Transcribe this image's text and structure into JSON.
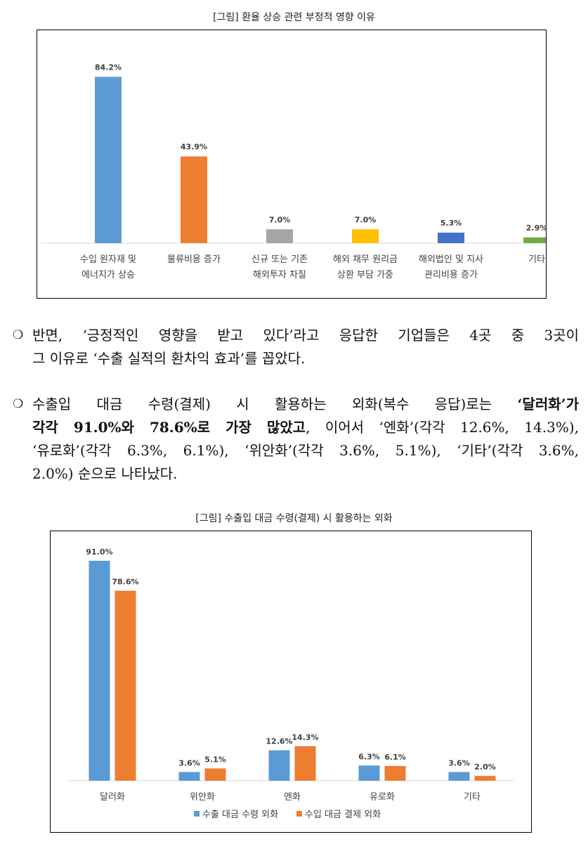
{
  "figure1": {
    "caption": "[그림] 환율 상승 관련 부정적 영향 이유",
    "chart_data": {
      "type": "bar",
      "categories": [
        [
          "수입 원자재 및",
          "에너지가 상승"
        ],
        [
          "물류비용 증가"
        ],
        [
          "신규 또는 기존",
          "해외투자 차질"
        ],
        [
          "해외 채무 원리금",
          "상환 부담 가중"
        ],
        [
          "해외법인 및 지사",
          "관리비용 증가"
        ],
        [
          "기타"
        ]
      ],
      "values": [
        84.2,
        43.9,
        7.0,
        7.0,
        5.3,
        2.9
      ],
      "value_labels": [
        "84.2%",
        "43.9%",
        "7.0%",
        "7.0%",
        "5.3%",
        "2.9%"
      ],
      "colors": [
        "#5b9bd5",
        "#ed7d31",
        "#a5a5a5",
        "#ffc000",
        "#4472c4",
        "#70ad47"
      ],
      "ylim": [
        0,
        90
      ]
    }
  },
  "para1": {
    "bullet": "❍",
    "lines": [
      "반면, ‘긍정적인 영향을 받고 있다’라고 응답한 기업들은 4곳 중 3곳이",
      "그 이유로 ‘수출 실적의 환차익 효과’를 꼽았다."
    ]
  },
  "para2": {
    "bullet": "❍",
    "line1_a": "수출입 대금 수령(결제) 시 활용하는 외화(복수 응답)로는 ",
    "line1_b": "‘달러화’가",
    "line2_b": "각각 91.0%와 78.6%로 가장 많았고",
    "line2_c": ", 이어서 ‘엔화’(각각 12.6%, 14.3%),",
    "line3": "‘유로화’(각각 6.3%, 6.1%), ‘위안화’(각각 3.6%, 5.1%), ‘기타’(각각 3.6%,",
    "line4": "2.0%) 순으로 나타났다."
  },
  "figure2": {
    "caption": "[그림] 수출입 대금 수령(결제) 시 활용하는 외화",
    "chart_data": {
      "type": "bar",
      "categories": [
        "달러화",
        "위안화",
        "엔화",
        "유로화",
        "기타"
      ],
      "series": [
        {
          "name": "수출 대금 수령 외화",
          "values": [
            91.0,
            3.6,
            12.6,
            6.3,
            3.6
          ],
          "labels": [
            "91.0%",
            "3.6%",
            "12.6%",
            "6.3%",
            "3.6%"
          ],
          "color": "#5b9bd5"
        },
        {
          "name": "수입 대금 결제 외화",
          "values": [
            78.6,
            5.1,
            14.3,
            6.1,
            2.0
          ],
          "labels": [
            "78.6%",
            "5.1%",
            "14.3%",
            "6.1%",
            "2.0%"
          ],
          "color": "#ed7d31"
        }
      ],
      "legend": "bottom",
      "ylim": [
        0,
        100
      ]
    }
  }
}
